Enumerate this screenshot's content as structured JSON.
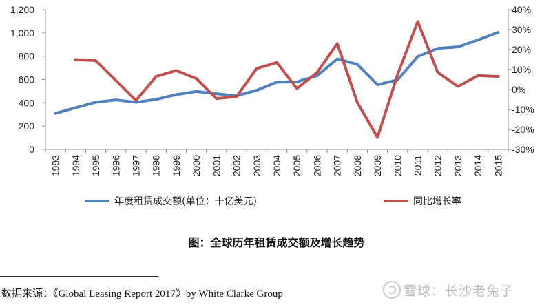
{
  "chart_data": {
    "type": "line",
    "categories": [
      "1993",
      "1994",
      "1995",
      "1996",
      "1997",
      "1998",
      "1999",
      "2000",
      "2001",
      "2002",
      "2003",
      "2004",
      "2005",
      "2006",
      "2007",
      "2008",
      "2009",
      "2010",
      "2011",
      "2012",
      "2013",
      "2014",
      "2015"
    ],
    "series": [
      {
        "name": "年度租赁成交额(单位：十亿美元)",
        "axis": "left",
        "color": "#4f81bd",
        "values": [
          310,
          358,
          405,
          425,
          405,
          430,
          470,
          497,
          478,
          460,
          508,
          577,
          580,
          632,
          777,
          730,
          555,
          597,
          797,
          868,
          880,
          940,
          1005
        ]
      },
      {
        "name": "同比增长率",
        "axis": "right",
        "color": "#c0504d",
        "values": [
          null,
          15,
          14.5,
          4.5,
          -5.5,
          6.5,
          9.5,
          5.5,
          -4.5,
          -3.5,
          10.5,
          13.5,
          0.5,
          8.5,
          23,
          -6.5,
          -24,
          7.5,
          34,
          8.5,
          1.5,
          7,
          6.5
        ]
      }
    ],
    "y_left": {
      "min": 0,
      "max": 1200,
      "step": 200,
      "ticks": [
        "0",
        "200",
        "400",
        "600",
        "800",
        "1,000",
        "1,200"
      ]
    },
    "y_right": {
      "min": -30,
      "max": 40,
      "step": 10,
      "ticks": [
        "-30%",
        "-20%",
        "-10%",
        "0%",
        "10%",
        "20%",
        "30%",
        "40%"
      ]
    },
    "legend_position": "bottom"
  },
  "caption": "图：全球历年租赁成交额及增长趋势",
  "source": "数据来源：《Global Leasing Report 2017》by White Clarke Group",
  "watermark": "雪球：长沙老兔子"
}
